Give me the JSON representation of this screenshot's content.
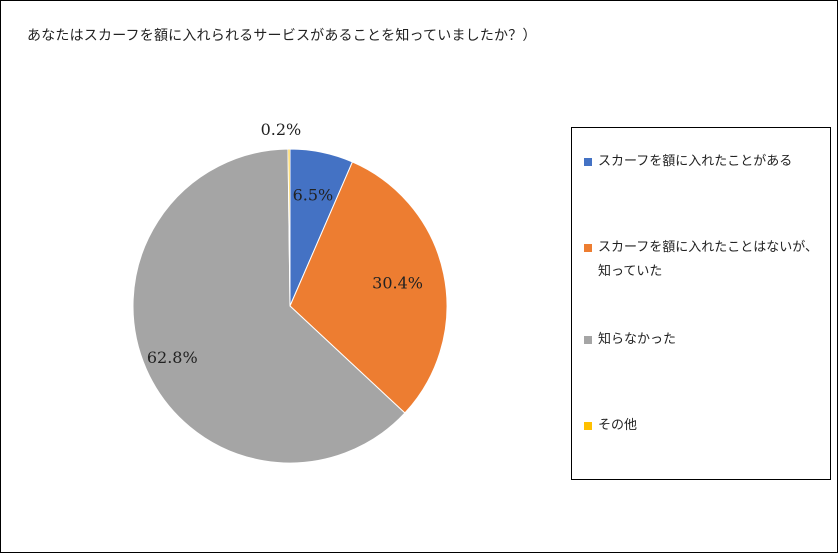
{
  "chart_data": {
    "type": "pie",
    "title": "あなたはスカーフを額に入れられるサービスがあることを知っていましたか？）",
    "slices": [
      {
        "label": "スカーフを額に入れたことがある",
        "value": 6.5,
        "value_label": "6.5%",
        "color": "#4472C4"
      },
      {
        "label": "スカーフを額に入れたことはないが、知っていた",
        "value": 30.4,
        "value_label": "30.4%",
        "color": "#ED7D31"
      },
      {
        "label": "知らなかった",
        "value": 62.8,
        "value_label": "62.8%",
        "color": "#A5A5A5"
      },
      {
        "label": "その他",
        "value": 0.2,
        "value_label": "0.2%",
        "color": "#FFC000"
      }
    ],
    "legend_position": "right"
  }
}
